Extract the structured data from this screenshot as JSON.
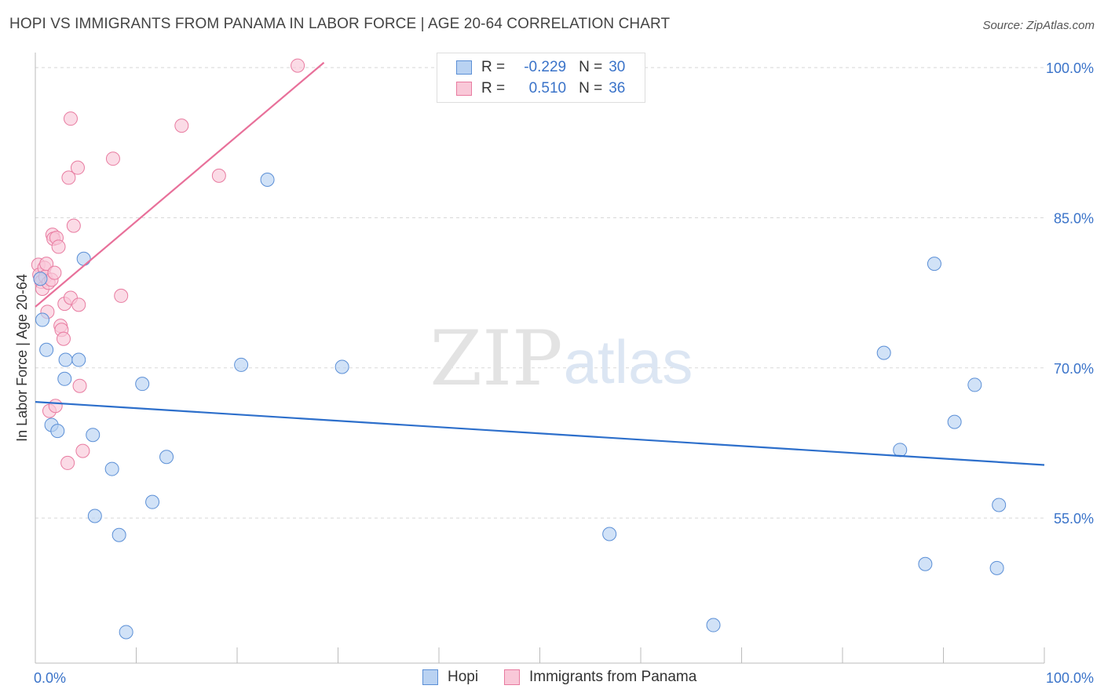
{
  "header": {
    "title": "HOPI VS IMMIGRANTS FROM PANAMA IN LABOR FORCE | AGE 20-64 CORRELATION CHART",
    "source": "Source: ZipAtlas.com"
  },
  "watermark": {
    "zip": "ZIP",
    "atlas": "atlas"
  },
  "legend": {
    "rows": [
      {
        "r_label": "R =",
        "r_value": "-0.229",
        "n_label": "N =",
        "n_value": "30",
        "color": "#5b8fd6",
        "fill": "#b9d2f2"
      },
      {
        "r_label": "R =",
        "r_value": "0.510",
        "n_label": "N =",
        "n_value": "36",
        "color": "#e87ba0",
        "fill": "#f9c8d8"
      }
    ]
  },
  "bottom_legend": [
    {
      "label": "Hopi",
      "color": "#5b8fd6",
      "fill": "#b9d2f2"
    },
    {
      "label": "Immigrants from Panama",
      "color": "#e87ba0",
      "fill": "#f9c8d8"
    }
  ],
  "colors": {
    "hopi_line": "#2d6fcb",
    "panama_line": "#e8709a",
    "grid": "#d8d8d8",
    "tick_text": "#3a73c9"
  },
  "chart_data": {
    "type": "scatter",
    "title": "HOPI VS IMMIGRANTS FROM PANAMA IN LABOR FORCE | AGE 20-64 CORRELATION CHART",
    "xlabel": "",
    "ylabel": "In Labor Force | Age 20-64",
    "xlim": [
      0,
      100
    ],
    "ylim": [
      40.5,
      101.5
    ],
    "x_tick_labels": [
      "0.0%",
      "100.0%"
    ],
    "y_ticks": [
      55,
      70,
      85,
      100
    ],
    "y_tick_labels": [
      "55.0%",
      "70.0%",
      "85.0%",
      "100.0%"
    ],
    "series": [
      {
        "name": "Hopi",
        "r": -0.229,
        "n": 30,
        "points": [
          [
            0.7,
            74.8
          ],
          [
            1.1,
            71.8
          ],
          [
            1.6,
            64.3
          ],
          [
            2.2,
            63.7
          ],
          [
            2.9,
            68.9
          ],
          [
            3.0,
            70.8
          ],
          [
            4.3,
            70.8
          ],
          [
            4.8,
            80.9
          ],
          [
            5.7,
            63.3
          ],
          [
            5.9,
            55.2
          ],
          [
            7.6,
            59.9
          ],
          [
            8.3,
            53.3
          ],
          [
            9.0,
            43.6
          ],
          [
            10.6,
            68.4
          ],
          [
            11.6,
            56.6
          ],
          [
            13.0,
            61.1
          ],
          [
            20.4,
            70.3
          ],
          [
            23.0,
            88.8
          ],
          [
            30.4,
            70.1
          ],
          [
            56.9,
            53.4
          ],
          [
            67.2,
            44.3
          ],
          [
            84.1,
            71.5
          ],
          [
            85.7,
            61.8
          ],
          [
            88.2,
            50.4
          ],
          [
            89.1,
            80.4
          ],
          [
            91.1,
            64.6
          ],
          [
            93.1,
            68.3
          ],
          [
            95.3,
            50.0
          ],
          [
            95.5,
            56.3
          ],
          [
            0.5,
            78.9
          ]
        ],
        "trend": {
          "x": [
            0,
            100
          ],
          "y": [
            66.6,
            60.3
          ]
        }
      },
      {
        "name": "Immigrants from Panama",
        "r": 0.51,
        "n": 36,
        "points": [
          [
            0.3,
            80.3
          ],
          [
            0.4,
            79.3
          ],
          [
            0.5,
            78.9
          ],
          [
            0.6,
            78.6
          ],
          [
            0.7,
            77.9
          ],
          [
            0.9,
            80.0
          ],
          [
            1.0,
            79.1
          ],
          [
            1.1,
            80.4
          ],
          [
            1.2,
            75.6
          ],
          [
            1.3,
            78.5
          ],
          [
            1.4,
            65.7
          ],
          [
            1.6,
            78.8
          ],
          [
            1.7,
            83.3
          ],
          [
            1.8,
            82.9
          ],
          [
            1.9,
            79.5
          ],
          [
            2.0,
            66.2
          ],
          [
            2.1,
            83.0
          ],
          [
            2.3,
            82.1
          ],
          [
            2.5,
            74.2
          ],
          [
            2.6,
            73.8
          ],
          [
            2.8,
            72.9
          ],
          [
            2.9,
            76.4
          ],
          [
            3.2,
            60.5
          ],
          [
            3.3,
            89.0
          ],
          [
            3.5,
            77.0
          ],
          [
            3.5,
            94.9
          ],
          [
            3.8,
            84.2
          ],
          [
            4.2,
            90.0
          ],
          [
            4.3,
            76.3
          ],
          [
            4.4,
            68.2
          ],
          [
            4.7,
            61.7
          ],
          [
            7.7,
            90.9
          ],
          [
            8.5,
            77.2
          ],
          [
            14.5,
            94.2
          ],
          [
            18.2,
            89.2
          ],
          [
            26.0,
            100.2
          ]
        ],
        "trend": {
          "x": [
            0,
            28.6
          ],
          "y": [
            76.1,
            100.5
          ]
        }
      }
    ]
  }
}
